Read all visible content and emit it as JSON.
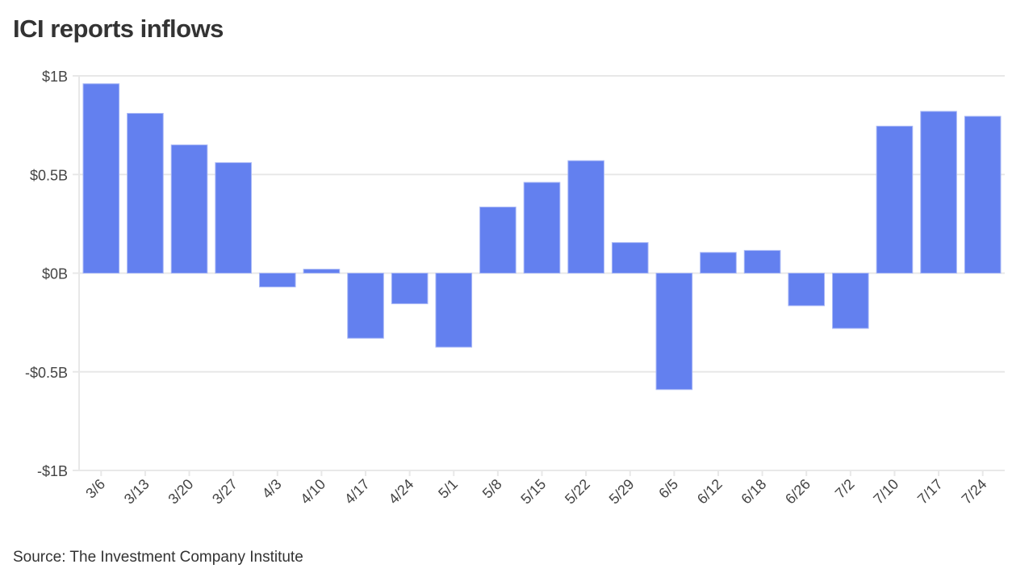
{
  "title": "ICI reports inflows",
  "source": "Source: The Investment Company Institute",
  "colors": {
    "bar": "#6380ef",
    "grid": "#e8e8e8"
  },
  "chart_data": {
    "type": "bar",
    "title": "ICI reports inflows",
    "xlabel": "",
    "ylabel": "",
    "ylim": [
      -1,
      1
    ],
    "unit": "billions USD",
    "yticks": [
      1,
      0.5,
      0,
      -0.5,
      -1
    ],
    "ytick_labels": [
      "$1B",
      "$0.5B",
      "$0B",
      "-$0.5B",
      "-$1B"
    ],
    "grid": true,
    "categories": [
      "3/6",
      "3/13",
      "3/20",
      "3/27",
      "4/3",
      "4/10",
      "4/17",
      "4/24",
      "5/1",
      "5/8",
      "5/15",
      "5/22",
      "5/29",
      "6/5",
      "6/12",
      "6/18",
      "6/26",
      "7/2",
      "7/10",
      "7/17",
      "7/24"
    ],
    "values": [
      0.96,
      0.81,
      0.65,
      0.56,
      -0.07,
      0.02,
      -0.33,
      -0.155,
      -0.375,
      0.335,
      0.46,
      0.57,
      0.155,
      -0.59,
      0.105,
      0.115,
      -0.165,
      -0.28,
      0.745,
      0.82,
      0.795
    ]
  }
}
